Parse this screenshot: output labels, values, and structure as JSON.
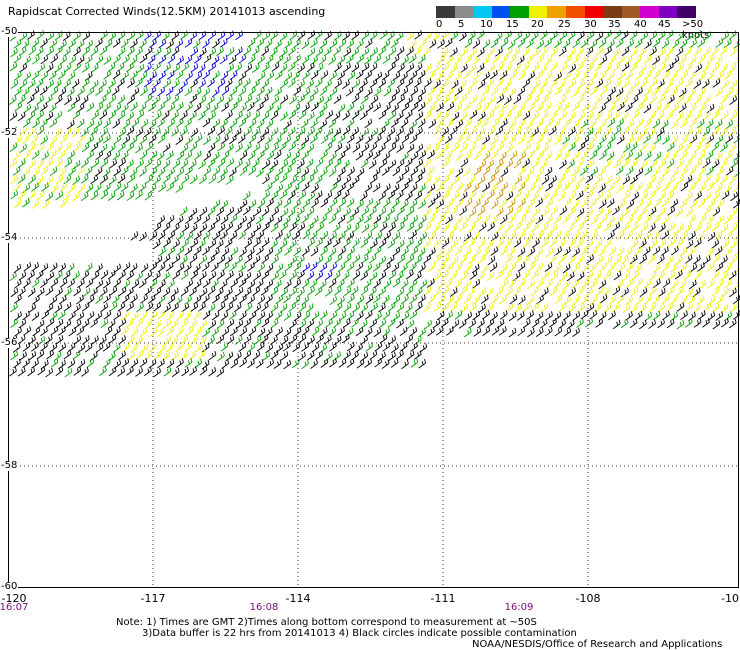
{
  "title": "Rapidscat Corrected Winds(12.5KM) 20141013 ascending",
  "legend": {
    "labels": [
      "0",
      "5",
      "10",
      "15",
      "20",
      "25",
      "30",
      "35",
      "40",
      "45",
      ">50 knots"
    ],
    "colors": [
      "#3a3a3a",
      "#8c8c8c",
      "#00c8f0",
      "#0050f0",
      "#00a000",
      "#f0f000",
      "#f0a000",
      "#f05000",
      "#f00000",
      "#7a3c14",
      "#a05a28",
      "#d000d0",
      "#8000c0",
      "#40006a"
    ]
  },
  "map": {
    "lon_range": [
      -120,
      -10
    ],
    "lat_range": [
      -50,
      -60
    ],
    "x_ticks": [
      "-120",
      "-117",
      "-114",
      "-111",
      "-108",
      "-10"
    ],
    "y_ticks": [
      "-50",
      "-52",
      "-54",
      "-56",
      "-58",
      "-60"
    ],
    "times": [
      "16:07",
      "16:08",
      "16:09"
    ],
    "time_color": "#7a0d7a",
    "grid": "dotted",
    "wind_colors": {
      "calm": "#000000",
      "moderate": "#00a000",
      "strong": "#f0f000",
      "very_strong": "#d09000",
      "light": "#0000d0"
    }
  },
  "notes": {
    "line1": "Note: 1) Times are GMT 2)Times along bottom correspond to measurement at ~50S",
    "line2": "3)Data buffer is 22 hrs from 20141013 4) Black circles indicate possible contamination",
    "credit": "NOAA/NESDIS/Office of Research and Applications"
  }
}
